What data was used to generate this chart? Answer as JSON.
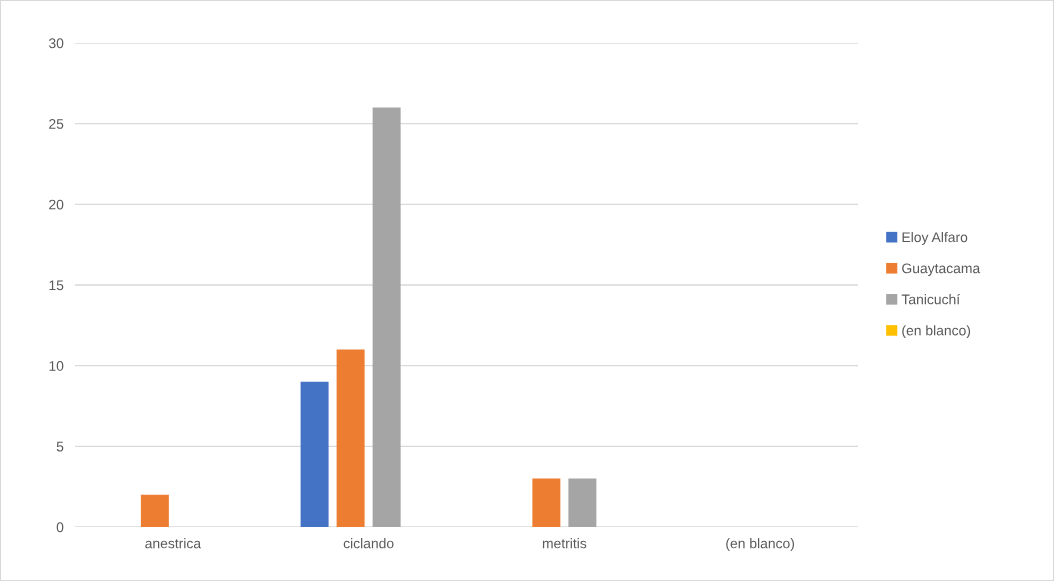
{
  "chart_data": {
    "type": "bar",
    "categories": [
      "anestrica",
      "ciclando",
      "metritis",
      "(en blanco)"
    ],
    "series": [
      {
        "name": "Eloy Alfaro",
        "color": "#4472c4",
        "values": [
          null,
          9,
          null,
          null
        ]
      },
      {
        "name": "Guaytacama",
        "color": "#ed7d31",
        "values": [
          2,
          11,
          3,
          null
        ]
      },
      {
        "name": "Tanicuchí",
        "color": "#a5a5a5",
        "values": [
          null,
          26,
          3,
          null
        ]
      },
      {
        "name": "(en blanco)",
        "color": "#ffc000",
        "values": [
          null,
          null,
          null,
          null
        ]
      }
    ],
    "ylim": [
      0,
      30
    ],
    "yticks": [
      0,
      5,
      10,
      15,
      20,
      25,
      30
    ],
    "grid": "y",
    "legend": "right"
  }
}
